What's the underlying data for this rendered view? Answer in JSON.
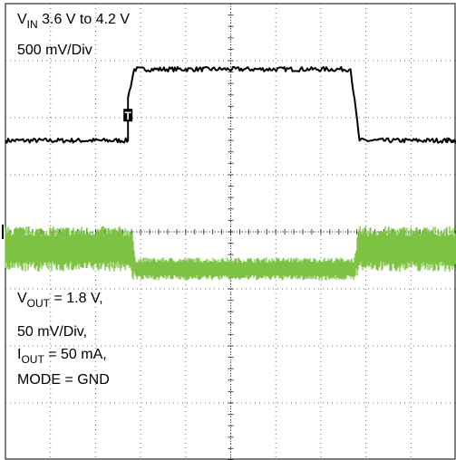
{
  "chart_data": {
    "type": "line",
    "title": "",
    "xlabel": "",
    "ylabel": "",
    "grid": true,
    "grid_divisions": {
      "x": 10,
      "y": 8
    },
    "xlim": [
      0,
      10
    ],
    "ylim": [
      -4,
      4
    ],
    "trigger_marker": "T",
    "level_marker": "←",
    "colors": {
      "vin": "#000000",
      "vout": "#7dc242",
      "grid": "#000000"
    },
    "series": [
      {
        "trace": "vin",
        "x": [
          0,
          2.72,
          2.72,
          2.86,
          7.66,
          7.86,
          7.86,
          10
        ],
        "y": [
          1.6,
          1.6,
          2.35,
          2.85,
          2.85,
          1.6,
          1.6,
          1.6
        ],
        "noise": 0.04
      },
      {
        "trace": "vout",
        "x": [
          0,
          2.78,
          2.9,
          7.74,
          7.86,
          10
        ],
        "y": [
          -0.3,
          -0.3,
          -0.65,
          -0.65,
          -0.3,
          -0.3
        ],
        "noise_band": [
          0.8,
          0.4
        ]
      }
    ],
    "annotations": {
      "vin": {
        "v": "V",
        "sub": "IN",
        "rest": " 3.6 V to 4.2 V",
        "line2": "500 mV/Div"
      },
      "vout": {
        "v": "V",
        "v_sub": "OUT",
        "v_rest": " = 1.8 V,",
        "line2": "50 mV/Div,",
        "i": "I",
        "i_sub": "OUT",
        "i_rest": " = 50 mA,",
        "line4": "MODE = GND"
      }
    }
  }
}
